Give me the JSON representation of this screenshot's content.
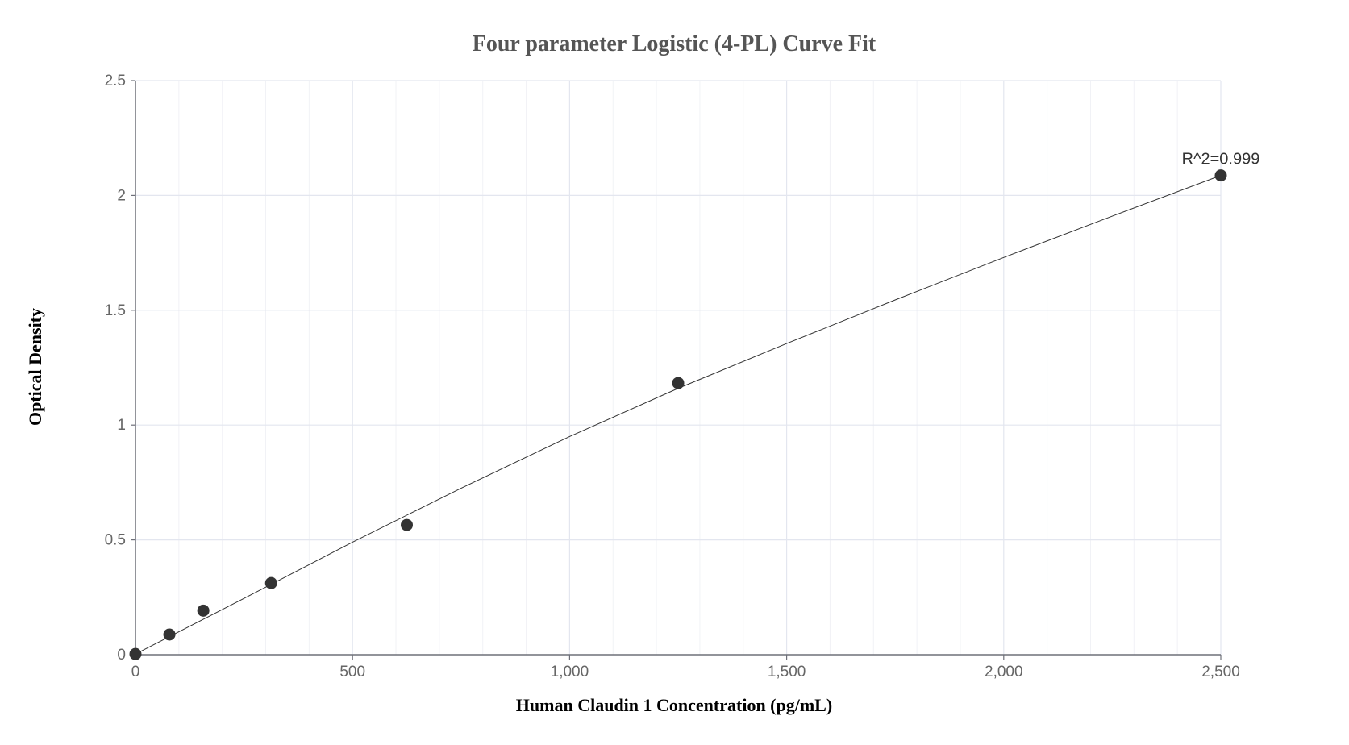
{
  "chart_data": {
    "type": "scatter",
    "title": "Four parameter Logistic (4-PL) Curve Fit",
    "xlabel": "Human Claudin 1 Concentration (pg/mL)",
    "ylabel": "Optical Density",
    "xlim": [
      0,
      2500
    ],
    "ylim": [
      0,
      2.5
    ],
    "x_ticks": [
      0,
      500,
      1000,
      1500,
      2000,
      2500
    ],
    "x_tick_labels": [
      "0",
      "500",
      "1,000",
      "1,500",
      "2,000",
      "2,500"
    ],
    "y_ticks": [
      0,
      0.5,
      1,
      1.5,
      2,
      2.5
    ],
    "y_tick_labels": [
      "0",
      "0.5",
      "1",
      "1.5",
      "2",
      "2.5"
    ],
    "grid": true,
    "points": [
      {
        "x": 0,
        "y": 0.003
      },
      {
        "x": 78.125,
        "y": 0.088
      },
      {
        "x": 156.25,
        "y": 0.192
      },
      {
        "x": 312.5,
        "y": 0.312
      },
      {
        "x": 625,
        "y": 0.565
      },
      {
        "x": 1250,
        "y": 1.183
      },
      {
        "x": 2500,
        "y": 2.087
      }
    ],
    "fit_curve": {
      "x": [
        0,
        250,
        500,
        750,
        1000,
        1250,
        1500,
        1750,
        2000,
        2250,
        2500
      ],
      "y": [
        0.003,
        0.245,
        0.49,
        0.725,
        0.95,
        1.16,
        1.355,
        1.545,
        1.73,
        1.91,
        2.087
      ]
    },
    "annotation": {
      "text": "R^2=0.999",
      "x": 2500,
      "y": 2.087
    }
  }
}
